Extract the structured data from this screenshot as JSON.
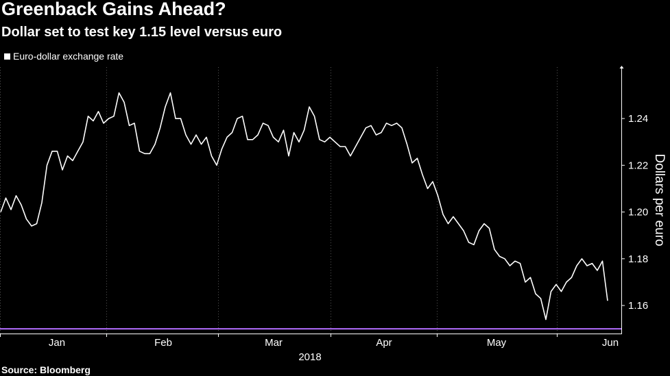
{
  "header": {
    "title": "Greenback Gains Ahead?",
    "subtitle": "Dollar set to test key 1.15 level versus euro"
  },
  "legend": {
    "label": "Euro-dollar exchange rate"
  },
  "source": "Source: Bloomberg",
  "colors": {
    "background": "#000000",
    "line": "#ffffff",
    "reference_line": "#b26cff",
    "grid": "#555555"
  },
  "chart_data": {
    "type": "line",
    "title": "Greenback Gains Ahead?",
    "subtitle": "Dollar set to test key 1.15 level versus euro",
    "xlabel": "2018",
    "ylabel": "Dollars per euro",
    "ylim": [
      1.148,
      1.262
    ],
    "yticks": [
      1.16,
      1.18,
      1.2,
      1.22,
      1.24
    ],
    "ytick_labels": [
      "1.16",
      "1.18",
      "1.20",
      "1.22",
      "1.24"
    ],
    "xticks": [
      "Jan",
      "Feb",
      "Mar",
      "Apr",
      "May",
      "Jun"
    ],
    "xtick_year": "2018",
    "y_axis_position": "right",
    "legend_position": "top-left",
    "grid": "vertical dotted at month boundaries",
    "reference_line": {
      "value": 1.15
    },
    "series": [
      {
        "name": "Euro-dollar exchange rate",
        "values": [
          1.2,
          1.206,
          1.201,
          1.207,
          1.203,
          1.197,
          1.194,
          1.195,
          1.204,
          1.22,
          1.226,
          1.226,
          1.218,
          1.224,
          1.222,
          1.226,
          1.23,
          1.241,
          1.239,
          1.243,
          1.238,
          1.24,
          1.241,
          1.251,
          1.247,
          1.237,
          1.238,
          1.226,
          1.225,
          1.225,
          1.229,
          1.236,
          1.245,
          1.251,
          1.24,
          1.24,
          1.233,
          1.229,
          1.233,
          1.229,
          1.232,
          1.224,
          1.22,
          1.227,
          1.232,
          1.234,
          1.24,
          1.241,
          1.231,
          1.231,
          1.233,
          1.238,
          1.237,
          1.232,
          1.23,
          1.235,
          1.224,
          1.234,
          1.23,
          1.235,
          1.245,
          1.241,
          1.231,
          1.23,
          1.232,
          1.23,
          1.228,
          1.228,
          1.224,
          1.228,
          1.232,
          1.236,
          1.237,
          1.233,
          1.234,
          1.238,
          1.237,
          1.238,
          1.236,
          1.229,
          1.221,
          1.223,
          1.216,
          1.21,
          1.213,
          1.207,
          1.199,
          1.195,
          1.198,
          1.195,
          1.192,
          1.187,
          1.186,
          1.192,
          1.195,
          1.193,
          1.184,
          1.181,
          1.18,
          1.177,
          1.179,
          1.178,
          1.17,
          1.172,
          1.165,
          1.163,
          1.154,
          1.166,
          1.169,
          1.166,
          1.17,
          1.172,
          1.177,
          1.18,
          1.177,
          1.178,
          1.175,
          1.179,
          1.162
        ]
      }
    ]
  }
}
